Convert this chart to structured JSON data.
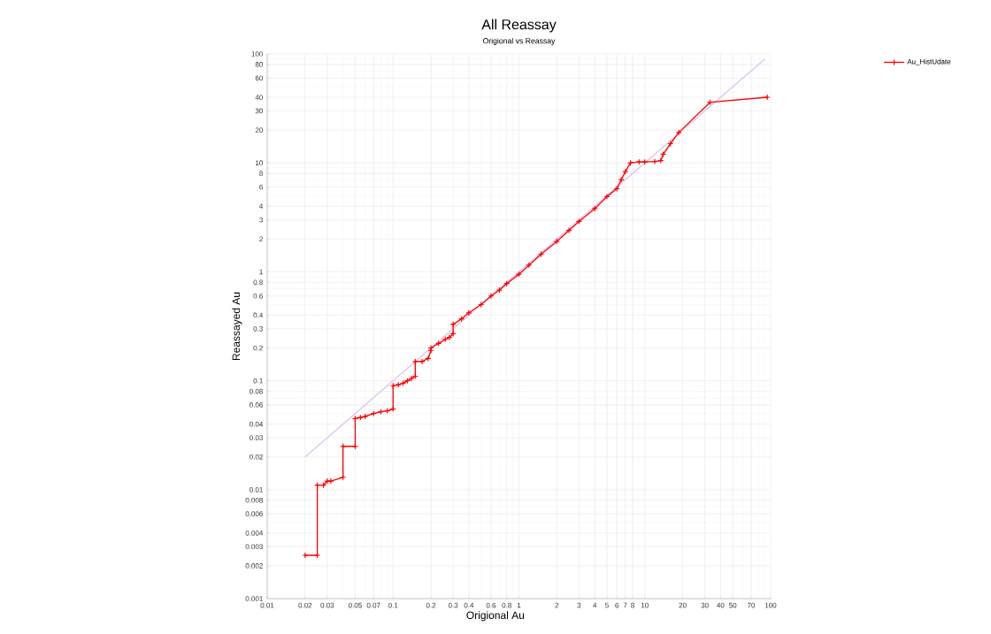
{
  "chart_data": {
    "type": "line",
    "title": "All Reassay",
    "subtitle": "Origional vs Reassay",
    "xlabel": "Origional Au",
    "ylabel": "Reassayed Au",
    "log": "xy",
    "grid": true,
    "legend": "top right",
    "marker": "cross",
    "xlim": [
      0.01,
      100
    ],
    "ylim": [
      0.001,
      100
    ],
    "xticks": [
      0.01,
      0.02,
      0.03,
      0.05,
      0.07,
      0.1,
      0.2,
      0.3,
      0.4,
      0.6,
      0.8,
      1,
      2,
      3,
      4,
      5,
      6,
      7,
      8,
      10,
      20,
      30,
      40,
      50,
      70,
      100
    ],
    "yticks": [
      0.001,
      0.002,
      0.003,
      0.004,
      0.006,
      0.008,
      0.01,
      0.02,
      0.03,
      0.04,
      0.06,
      0.08,
      0.1,
      0.2,
      0.3,
      0.4,
      0.6,
      0.8,
      1,
      2,
      3,
      4,
      6,
      8,
      10,
      20,
      30,
      40,
      60,
      80,
      100
    ],
    "series": [
      {
        "type": "line",
        "color": "#dcc3f0",
        "marker": "none",
        "x": [
          0.02,
          90
        ],
        "values": [
          0.02,
          90
        ]
      },
      {
        "name": "Au_HistUdate",
        "color": "#ff0000",
        "x": [
          0.02,
          0.025,
          0.025,
          0.028,
          0.03,
          0.032,
          0.04,
          0.04,
          0.05,
          0.05,
          0.055,
          0.06,
          0.07,
          0.08,
          0.09,
          0.1,
          0.1,
          0.11,
          0.12,
          0.13,
          0.14,
          0.15,
          0.15,
          0.17,
          0.19,
          0.2,
          0.2,
          0.23,
          0.26,
          0.28,
          0.3,
          0.3,
          0.35,
          0.4,
          0.5,
          0.6,
          0.7,
          0.8,
          1,
          1.2,
          1.5,
          2,
          2.5,
          3,
          4,
          5,
          6,
          6.5,
          7,
          7.7,
          9,
          10,
          12,
          13.4,
          14,
          16,
          18.6,
          33,
          94
        ],
        "values": [
          0.0025,
          0.0025,
          0.011,
          0.011,
          0.012,
          0.012,
          0.013,
          0.025,
          0.025,
          0.045,
          0.046,
          0.047,
          0.05,
          0.052,
          0.053,
          0.055,
          0.09,
          0.092,
          0.095,
          0.1,
          0.105,
          0.11,
          0.15,
          0.15,
          0.16,
          0.19,
          0.2,
          0.22,
          0.24,
          0.25,
          0.27,
          0.33,
          0.37,
          0.42,
          0.5,
          0.6,
          0.68,
          0.78,
          0.95,
          1.15,
          1.45,
          1.9,
          2.4,
          2.9,
          3.8,
          4.9,
          5.8,
          7,
          8.3,
          10,
          10.2,
          10.2,
          10.3,
          10.5,
          12,
          15,
          19,
          36,
          40
        ]
      }
    ]
  }
}
